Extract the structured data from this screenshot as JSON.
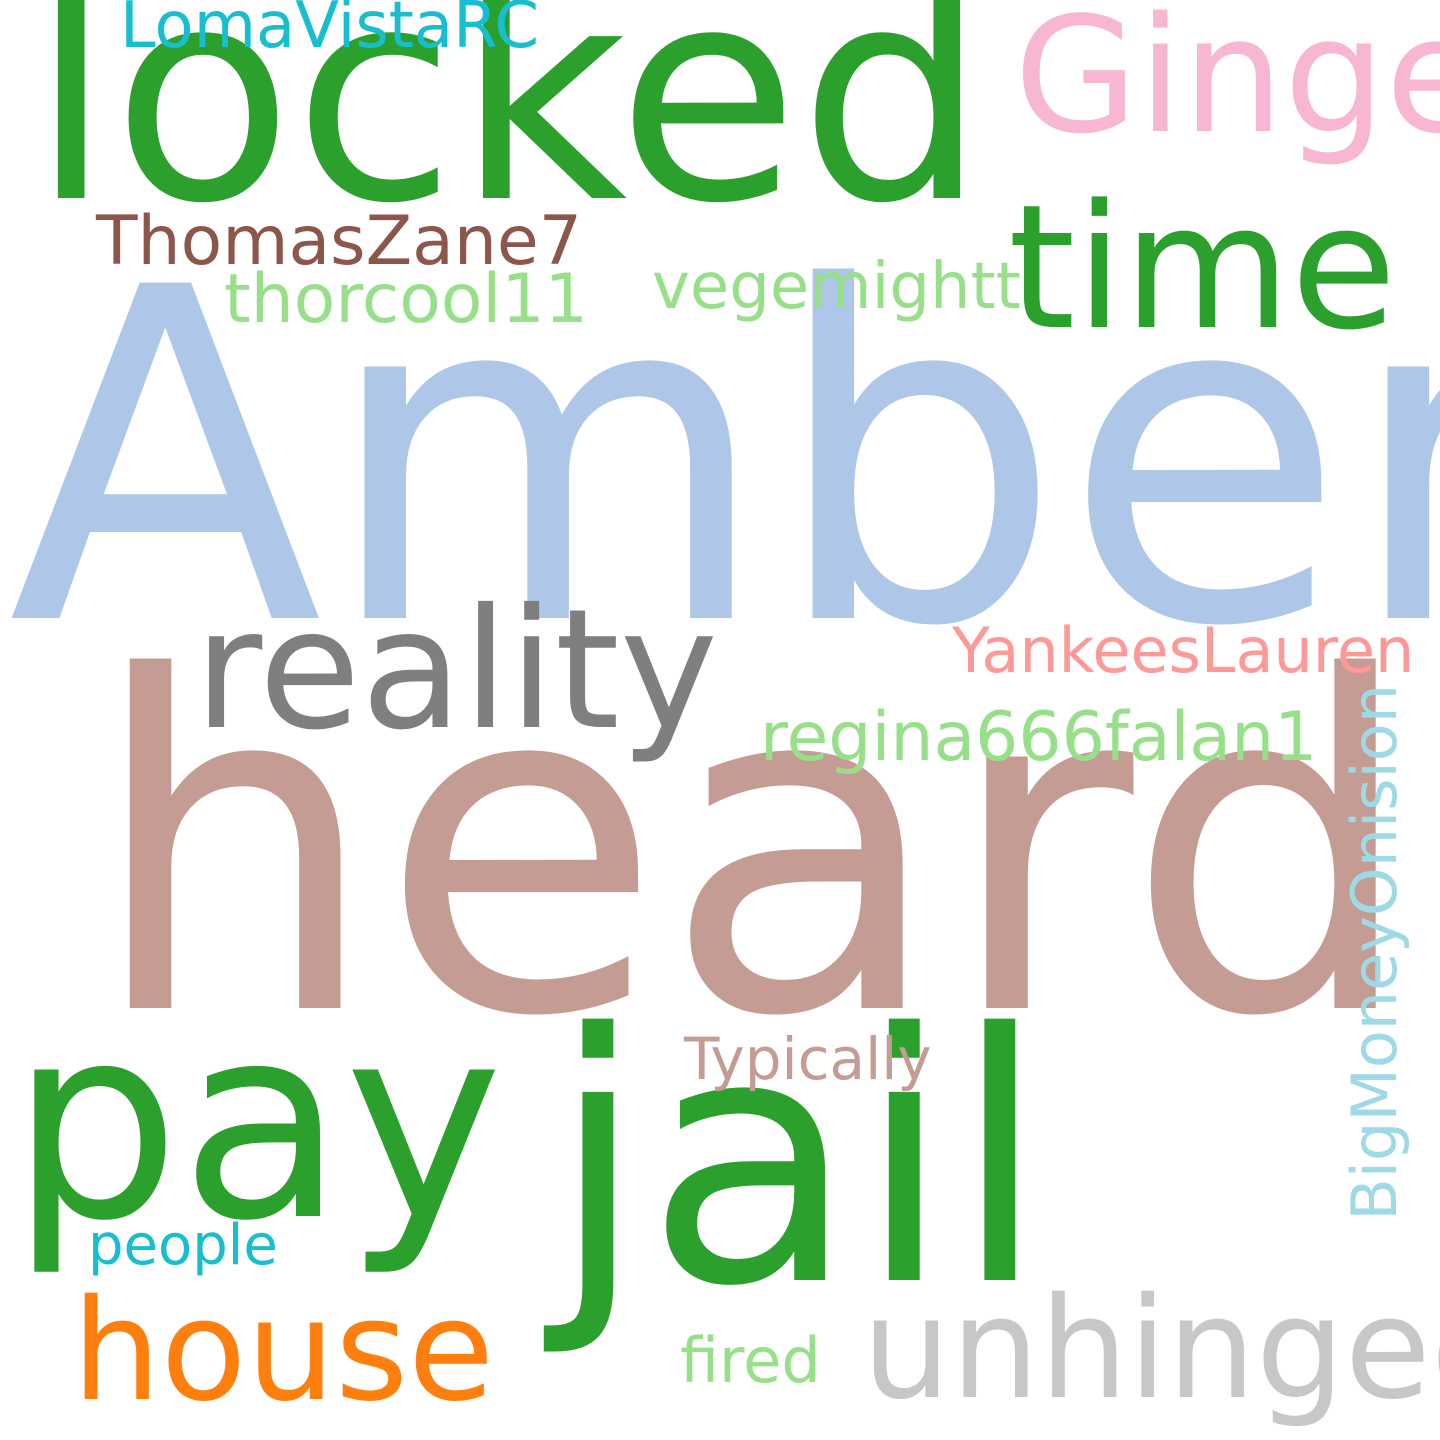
{
  "words": [
    {
      "key": "amber",
      "text": "Amber",
      "color": "#aec7e8"
    },
    {
      "key": "heard",
      "text": "heard",
      "color": "#c49c94"
    },
    {
      "key": "locked",
      "text": "locked",
      "color": "#2ca02c"
    },
    {
      "key": "jail",
      "text": "jail",
      "color": "#2ca02c"
    },
    {
      "key": "pay",
      "text": "pay",
      "color": "#2ca02c"
    },
    {
      "key": "time",
      "text": "time",
      "color": "#2ca02c"
    },
    {
      "key": "reality",
      "text": "reality",
      "color": "#7f7f7f"
    },
    {
      "key": "ginge",
      "text": "Ginge",
      "color": "#f7b6d2"
    },
    {
      "key": "house",
      "text": "house",
      "color": "#ff7f0e"
    },
    {
      "key": "unhinged",
      "text": "unhinged",
      "color": "#c7c7c7"
    },
    {
      "key": "thomaszane7",
      "text": "ThomasZane7",
      "color": "#8c564b"
    },
    {
      "key": "lomavistarc",
      "text": "LomaVistaRC",
      "color": "#17becf"
    },
    {
      "key": "thorcool11",
      "text": "thorcool11",
      "color": "#98df8a"
    },
    {
      "key": "vegemightt",
      "text": "vegemightt",
      "color": "#98df8a"
    },
    {
      "key": "yankeeslauren",
      "text": "YankeesLauren",
      "color": "#ff9896"
    },
    {
      "key": "regina666falan1",
      "text": "regina666falan1",
      "color": "#98df8a"
    },
    {
      "key": "bigmoneyonision",
      "text": "BigMoneyOnision",
      "color": "#9edae5"
    },
    {
      "key": "typically",
      "text": "Typically",
      "color": "#c49c94"
    },
    {
      "key": "people",
      "text": "people",
      "color": "#17becf"
    },
    {
      "key": "fired",
      "text": "fired",
      "color": "#98df8a"
    }
  ]
}
